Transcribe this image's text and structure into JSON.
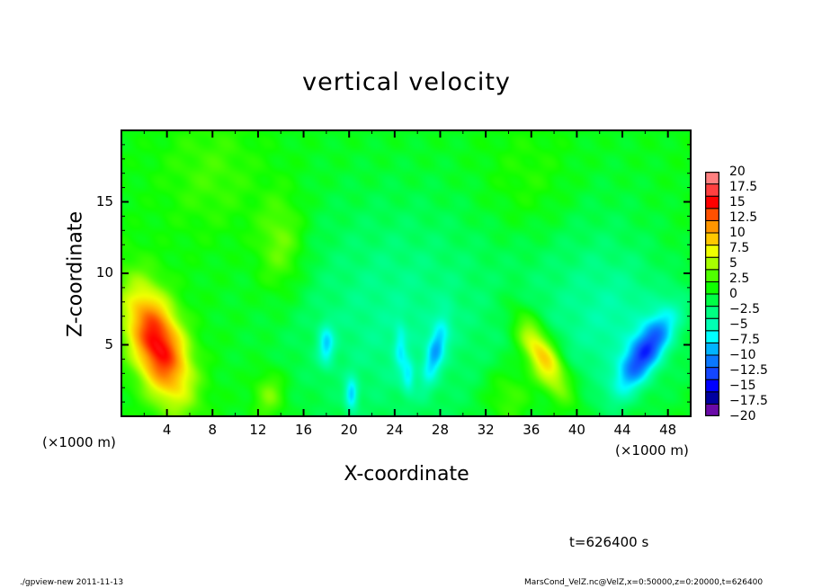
{
  "chart_data": {
    "type": "heatmap",
    "title": "vertical velocity",
    "xlabel": "X-coordinate",
    "ylabel": "Z-coordinate",
    "x_unit": "(×1000 m)",
    "y_unit": "(×1000 m)",
    "xlim": [
      0,
      50
    ],
    "ylim": [
      0,
      20
    ],
    "xticks": [
      4,
      8,
      12,
      16,
      20,
      24,
      28,
      32,
      36,
      40,
      44,
      48
    ],
    "xtick_labels": [
      "4",
      "8",
      "12",
      "16",
      "20",
      "24",
      "28",
      "32",
      "36",
      "40",
      "44",
      "48"
    ],
    "yticks": [
      5,
      10,
      15
    ],
    "ytick_labels": [
      "5",
      "10",
      "15"
    ],
    "colorbar": {
      "range": [
        -20,
        20
      ],
      "level_step": 2,
      "labels": [
        "20",
        "17.5",
        "15",
        "12.5",
        "10",
        "7.5",
        "5",
        "2.5",
        "0",
        "−2.5",
        "−5",
        "−7.5",
        "−10",
        "−12.5",
        "−15",
        "−17.5",
        "−20"
      ],
      "label_values": [
        20,
        17.5,
        15,
        12.5,
        10,
        7.5,
        5,
        2.5,
        0,
        -2.5,
        -5,
        -7.5,
        -10,
        -12.5,
        -15,
        -17.5,
        -20
      ],
      "colors": [
        "#6a0aa8",
        "#0000a0",
        "#0000ff",
        "#1446ff",
        "#0a78ff",
        "#00b4ff",
        "#00ffff",
        "#00ffb4",
        "#00ff82",
        "#00ff46",
        "#10ff00",
        "#50ff00",
        "#a8ff00",
        "#f0ff00",
        "#ffc800",
        "#ff9600",
        "#ff5000",
        "#ff0000",
        "#ff4040",
        "#ff8080"
      ]
    },
    "features_approx": [
      {
        "x": 3.2,
        "z": 5.0,
        "amp": 15,
        "sx": 1.7,
        "sz": 2.8,
        "tilt": -0.35
      },
      {
        "x": 37.0,
        "z": 4.2,
        "amp": 10,
        "sx": 1.1,
        "sz": 2.0,
        "tilt": -0.6
      },
      {
        "x": 46.0,
        "z": 4.5,
        "amp": -11,
        "sx": 1.1,
        "sz": 2.0,
        "tilt": 0.7
      },
      {
        "x": 18.0,
        "z": 5.0,
        "amp": -6,
        "sx": 0.5,
        "sz": 1.0,
        "tilt": 0
      },
      {
        "x": 20.2,
        "z": 1.5,
        "amp": -7,
        "sx": 0.4,
        "sz": 0.8,
        "tilt": 0
      },
      {
        "x": 24.5,
        "z": 4.8,
        "amp": -4,
        "sx": 0.4,
        "sz": 1.2,
        "tilt": 0
      },
      {
        "x": 25.2,
        "z": 2.8,
        "amp": -5,
        "sx": 0.4,
        "sz": 0.8,
        "tilt": 0
      },
      {
        "x": 27.6,
        "z": 4.6,
        "amp": -7,
        "sx": 0.6,
        "sz": 1.6,
        "tilt": 0.3
      },
      {
        "x": 24.0,
        "z": 7.0,
        "amp": -4,
        "sx": 7,
        "sz": 6,
        "tilt": 0
      },
      {
        "x": 44.0,
        "z": 6.0,
        "amp": -4,
        "sx": 4,
        "sz": 3.5,
        "tilt": 0
      },
      {
        "x": 40.0,
        "z": 11.0,
        "amp": -2,
        "sx": 5,
        "sz": 5,
        "tilt": 0
      },
      {
        "x": 14.0,
        "z": 12.0,
        "amp": 4,
        "sx": 1.5,
        "sz": 2.5,
        "tilt": 0
      },
      {
        "x": 13.0,
        "z": 1.5,
        "amp": 4,
        "sx": 1.0,
        "sz": 1.2,
        "tilt": 0
      },
      {
        "x": 34.0,
        "z": 1.5,
        "amp": 3,
        "sx": 1.5,
        "sz": 1.5,
        "tilt": 0
      },
      {
        "x": 36.0,
        "z": 16.0,
        "amp": 2,
        "sx": 3,
        "sz": 3,
        "tilt": 0
      },
      {
        "x": 8.0,
        "z": 17.0,
        "amp": 2,
        "sx": 3,
        "sz": 3,
        "tilt": 0
      }
    ],
    "background_value": 0.5,
    "time_label": "t=626400 s"
  },
  "footer": {
    "left": "./gpview-new   2011-11-13",
    "right": "MarsCond_VelZ.nc@VelZ,x=0:50000,z=0:20000,t=626400"
  }
}
